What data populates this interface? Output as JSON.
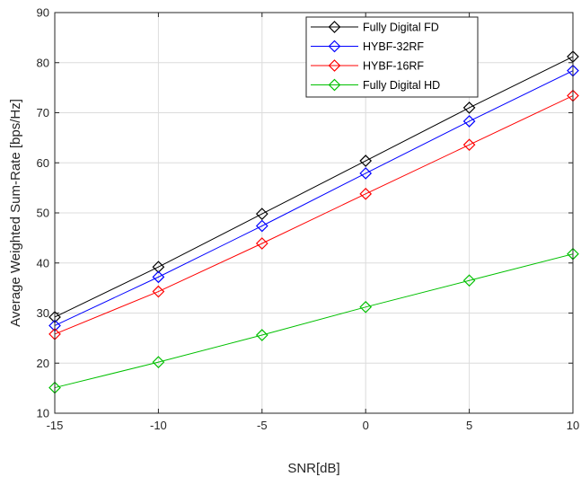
{
  "chart_data": {
    "type": "line",
    "title": "",
    "xlabel": "SNR[dB]",
    "ylabel": "Average Weighted Sum-Rate [bps/Hz]",
    "x": [
      -15,
      -10,
      -5,
      0,
      5,
      10
    ],
    "xlim": [
      -15,
      10
    ],
    "ylim": [
      10,
      90
    ],
    "xticks": [
      -15,
      -10,
      -5,
      0,
      5,
      10
    ],
    "yticks": [
      10,
      20,
      30,
      40,
      50,
      60,
      70,
      80,
      90
    ],
    "grid": true,
    "legend_position": "top-right",
    "marker": "diamond",
    "series": [
      {
        "name": "Fully Digital FD",
        "color": "#000000",
        "values": [
          29.2,
          39.2,
          49.8,
          60.4,
          71.0,
          81.2
        ]
      },
      {
        "name": "HYBF-32RF",
        "color": "#0000ff",
        "values": [
          27.5,
          37.2,
          47.4,
          57.9,
          68.3,
          78.4
        ]
      },
      {
        "name": "HYBF-16RF",
        "color": "#ff0000",
        "values": [
          25.8,
          34.3,
          43.9,
          53.8,
          63.6,
          73.4
        ]
      },
      {
        "name": "Fully Digital HD",
        "color": "#00c000",
        "values": [
          15.1,
          20.2,
          25.6,
          31.2,
          36.5,
          41.8
        ]
      }
    ]
  }
}
